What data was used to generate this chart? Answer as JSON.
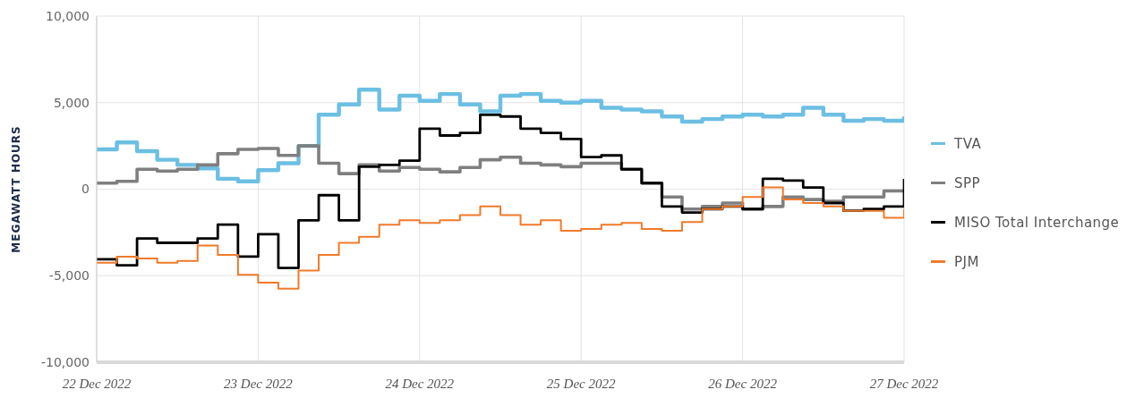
{
  "chart_data": {
    "type": "step",
    "ylabel": "MEGAWATT HOURS",
    "x": [
      "2022-12-22T00:00",
      "2022-12-22T03:00",
      "2022-12-22T06:00",
      "2022-12-22T09:00",
      "2022-12-22T12:00",
      "2022-12-22T15:00",
      "2022-12-22T18:00",
      "2022-12-22T21:00",
      "2022-12-23T00:00",
      "2022-12-23T03:00",
      "2022-12-23T06:00",
      "2022-12-23T09:00",
      "2022-12-23T12:00",
      "2022-12-23T15:00",
      "2022-12-23T18:00",
      "2022-12-23T21:00",
      "2022-12-24T00:00",
      "2022-12-24T03:00",
      "2022-12-24T06:00",
      "2022-12-24T09:00",
      "2022-12-24T12:00",
      "2022-12-24T15:00",
      "2022-12-24T18:00",
      "2022-12-24T21:00",
      "2022-12-25T00:00",
      "2022-12-25T03:00",
      "2022-12-25T06:00",
      "2022-12-25T09:00",
      "2022-12-25T12:00",
      "2022-12-25T15:00",
      "2022-12-25T18:00",
      "2022-12-25T21:00",
      "2022-12-26T00:00",
      "2022-12-26T03:00",
      "2022-12-26T06:00",
      "2022-12-26T09:00",
      "2022-12-26T12:00",
      "2022-12-26T15:00",
      "2022-12-26T18:00",
      "2022-12-26T21:00",
      "2022-12-27T00:00"
    ],
    "series": [
      {
        "name": "TVA",
        "color": "#6cbfe3",
        "values": [
          2300,
          2700,
          2200,
          1700,
          1400,
          1200,
          600,
          450,
          1100,
          1500,
          2500,
          4300,
          4900,
          5750,
          4600,
          5400,
          5100,
          5500,
          4900,
          4500,
          5400,
          5500,
          5100,
          5000,
          5100,
          4700,
          4600,
          4500,
          4200,
          3900,
          4050,
          4200,
          4300,
          4200,
          4300,
          4700,
          4300,
          3950,
          4050,
          3950,
          4200
        ]
      },
      {
        "name": "SPP",
        "color": "#7f7f7f",
        "values": [
          350,
          450,
          1150,
          1050,
          1150,
          1400,
          2050,
          2300,
          2350,
          1950,
          2500,
          1500,
          900,
          1400,
          1050,
          1250,
          1150,
          1000,
          1250,
          1700,
          1850,
          1500,
          1400,
          1300,
          1500,
          1500,
          1150,
          350,
          -450,
          -1150,
          -1000,
          -800,
          -1150,
          -1000,
          -450,
          -600,
          -700,
          -450,
          -450,
          -100,
          -100
        ]
      },
      {
        "name": "MISO Total Interchange",
        "color": "#000000",
        "values": [
          -4050,
          -4400,
          -2850,
          -3100,
          -3100,
          -2850,
          -2050,
          -3900,
          -2600,
          -4550,
          -1800,
          -350,
          -1800,
          1300,
          1400,
          1650,
          3500,
          3100,
          3250,
          4300,
          4200,
          3500,
          3250,
          2900,
          1850,
          1950,
          1150,
          350,
          -1000,
          -1350,
          -1150,
          -1000,
          -1150,
          600,
          500,
          100,
          -800,
          -1250,
          -1150,
          -1000,
          600
        ]
      },
      {
        "name": "PJM",
        "color": "#f07a2a",
        "values": [
          -4250,
          -3900,
          -4000,
          -4250,
          -4150,
          -3250,
          -3800,
          -4950,
          -5400,
          -5750,
          -4700,
          -3800,
          -3100,
          -2750,
          -2050,
          -1800,
          -1950,
          -1800,
          -1500,
          -1000,
          -1500,
          -2050,
          -1800,
          -2400,
          -2300,
          -2050,
          -1950,
          -2300,
          -2400,
          -1900,
          -1150,
          -1000,
          -450,
          100,
          -600,
          -800,
          -1000,
          -1250,
          -1250,
          -1650,
          -1150
        ]
      }
    ],
    "xlim": [
      "2022-12-22",
      "2022-12-27"
    ],
    "xticks": [
      {
        "value": "2022-12-22",
        "label": "22 Dec 2022"
      },
      {
        "value": "2022-12-23",
        "label": "23 Dec 2022"
      },
      {
        "value": "2022-12-24",
        "label": "24 Dec 2022"
      },
      {
        "value": "2022-12-25",
        "label": "25 Dec 2022"
      },
      {
        "value": "2022-12-26",
        "label": "26 Dec 2022"
      },
      {
        "value": "2022-12-27",
        "label": "27 Dec 2022"
      }
    ],
    "ylim": [
      -10000,
      10000
    ],
    "yticks": [
      {
        "value": -10000,
        "label": "-10,000"
      },
      {
        "value": -5000,
        "label": "-5,000"
      },
      0,
      {
        "value": 5000,
        "label": "5,000"
      },
      {
        "value": 10000,
        "label": "10,000"
      }
    ],
    "grid": true,
    "legend": "right",
    "marker": "none",
    "line_style": "solid"
  }
}
